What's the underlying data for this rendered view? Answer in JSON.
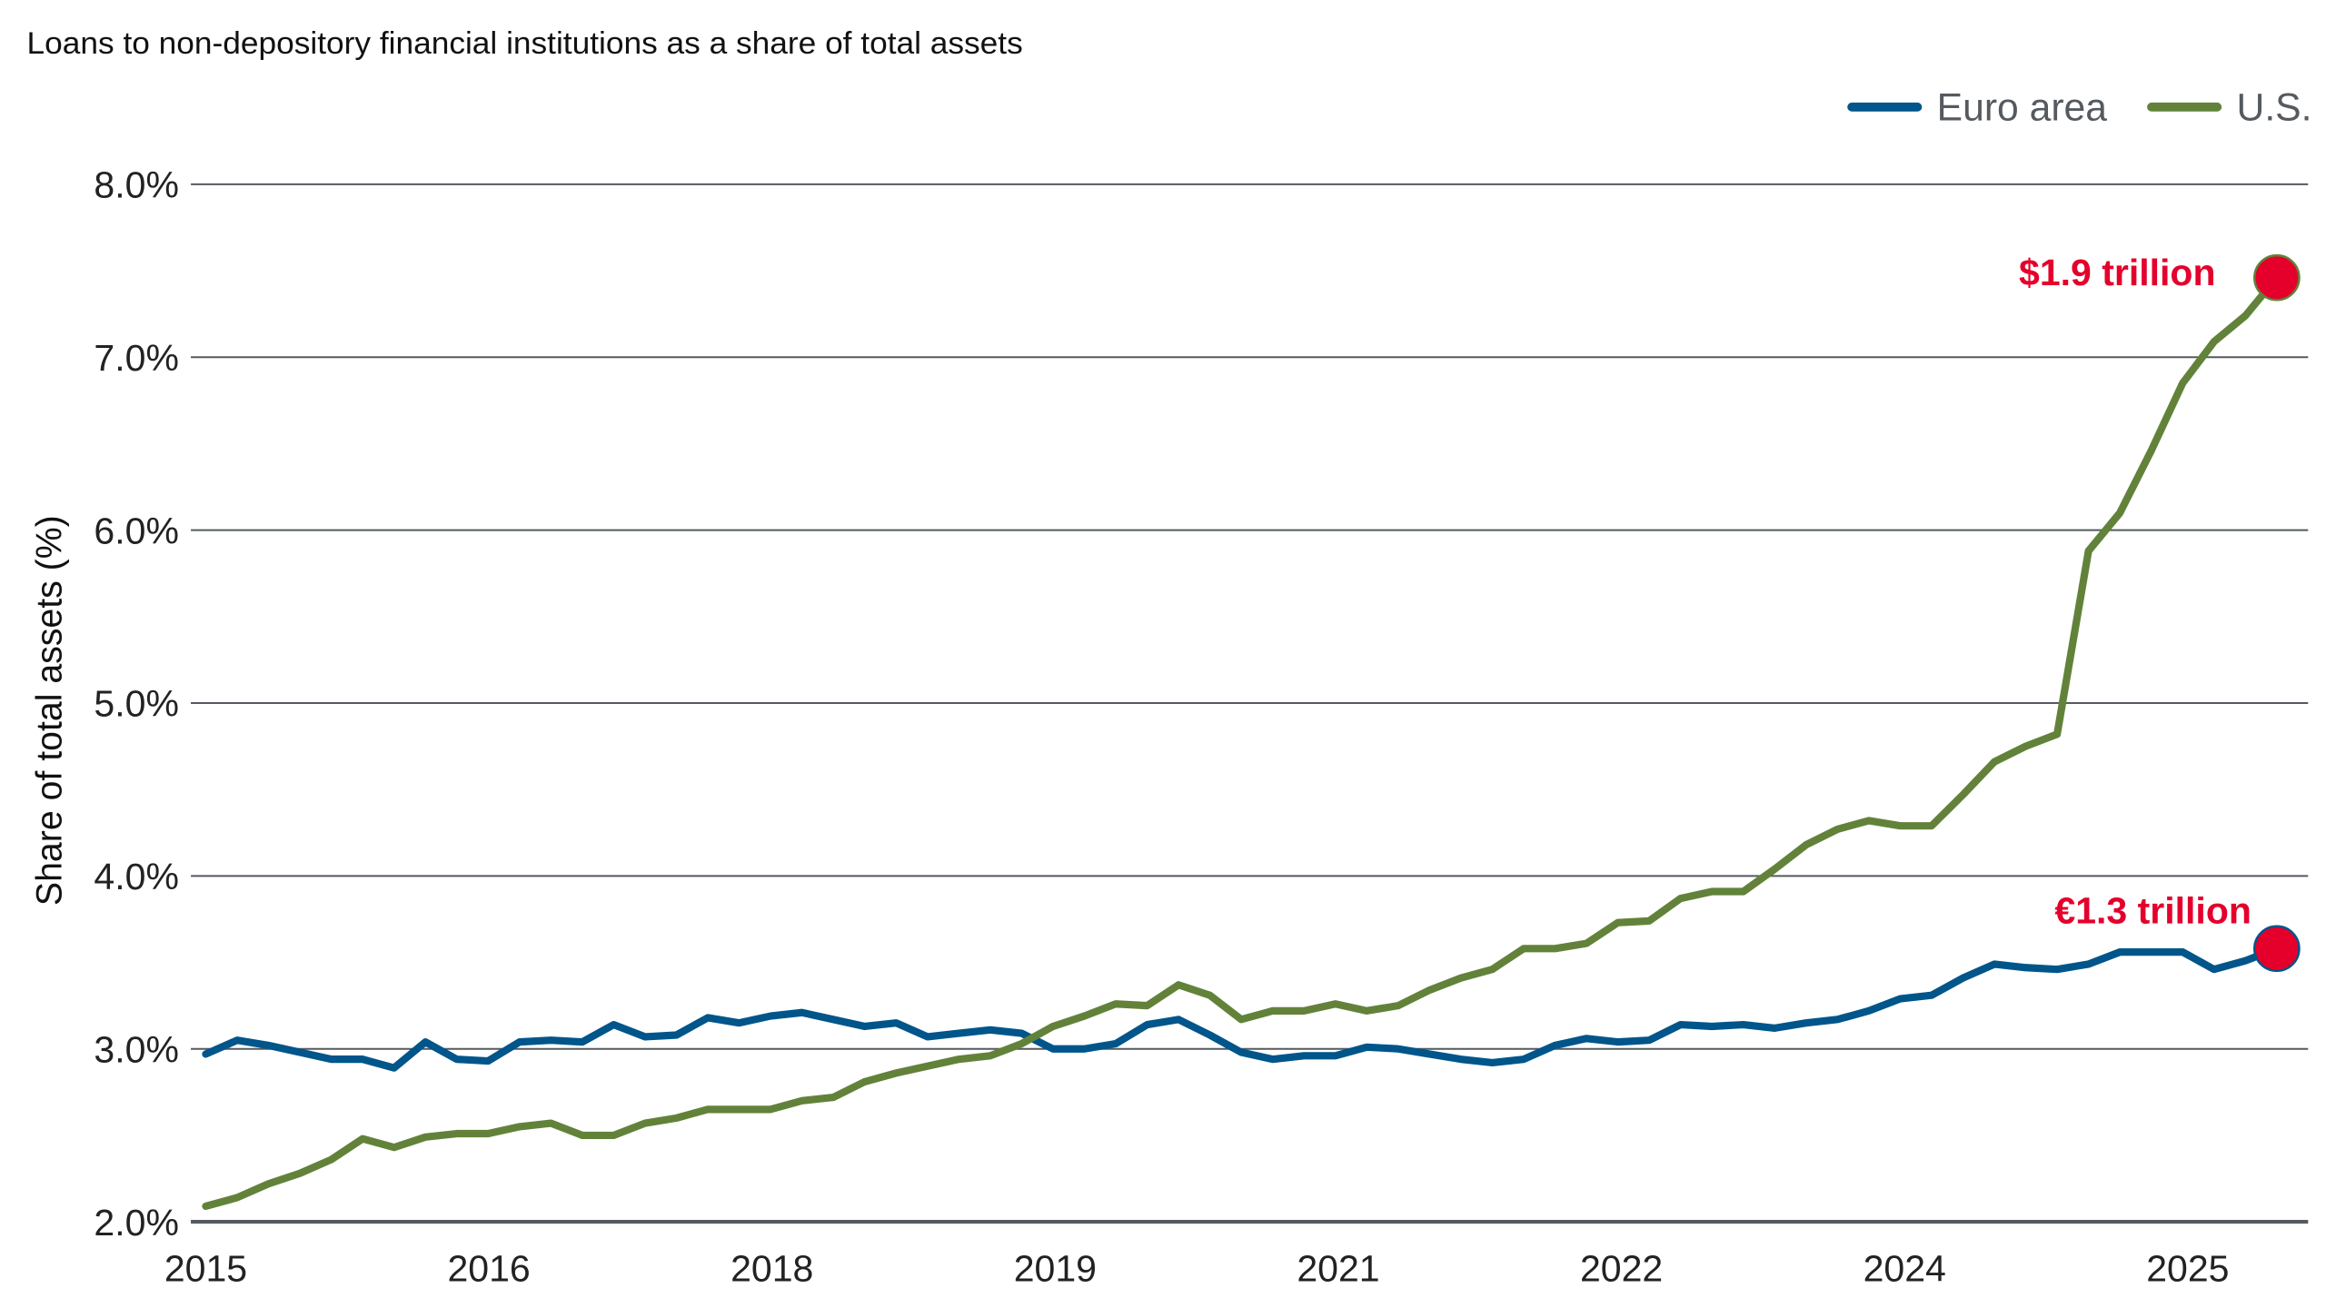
{
  "chart_data": {
    "type": "line",
    "title": "Loans to non-depository financial institutions as a share of total assets",
    "ylabel": "Share of total assets (%)",
    "xlabel": "",
    "ylim": [
      2.0,
      8.0
    ],
    "y_ticks": [
      "2.0%",
      "3.0%",
      "4.0%",
      "5.0%",
      "6.0%",
      "7.0%",
      "8.0%"
    ],
    "x_tick_labels": [
      "2015",
      "2016",
      "2018",
      "2019",
      "2021",
      "2022",
      "2024",
      "2025"
    ],
    "grid": "horizontal",
    "legend_position": "top-right",
    "series": [
      {
        "name": "Euro area",
        "color": "#00558a",
        "end_label": "€1.3 trillion",
        "values": [
          2.97,
          3.05,
          3.02,
          2.98,
          2.94,
          2.94,
          2.89,
          3.04,
          2.94,
          2.93,
          3.04,
          3.05,
          3.04,
          3.14,
          3.07,
          3.08,
          3.18,
          3.15,
          3.19,
          3.21,
          3.17,
          3.13,
          3.15,
          3.07,
          3.09,
          3.11,
          3.09,
          3.0,
          3.0,
          3.03,
          3.14,
          3.17,
          3.08,
          2.98,
          2.94,
          2.96,
          2.96,
          3.01,
          3.0,
          2.97,
          2.94,
          2.92,
          2.94,
          3.02,
          3.06,
          3.04,
          3.05,
          3.14,
          3.13,
          3.14,
          3.12,
          3.15,
          3.17,
          3.22,
          3.29,
          3.31,
          3.41,
          3.49,
          3.47,
          3.46,
          3.49,
          3.56,
          3.56,
          3.56,
          3.46,
          3.51,
          3.58
        ]
      },
      {
        "name": "U.S.",
        "color": "#62823a",
        "end_label": "$1.9 trillion",
        "values": [
          2.09,
          2.14,
          2.22,
          2.28,
          2.36,
          2.48,
          2.43,
          2.49,
          2.51,
          2.51,
          2.55,
          2.57,
          2.5,
          2.5,
          2.57,
          2.6,
          2.65,
          2.65,
          2.65,
          2.7,
          2.72,
          2.81,
          2.86,
          2.9,
          2.94,
          2.96,
          3.03,
          3.13,
          3.19,
          3.26,
          3.25,
          3.37,
          3.31,
          3.17,
          3.22,
          3.22,
          3.26,
          3.22,
          3.25,
          3.34,
          3.41,
          3.46,
          3.58,
          3.58,
          3.61,
          3.73,
          3.74,
          3.87,
          3.91,
          3.91,
          4.04,
          4.18,
          4.27,
          4.32,
          4.29,
          4.29,
          4.47,
          4.66,
          4.75,
          4.82,
          5.88,
          6.1,
          6.46,
          6.85,
          7.09,
          7.24,
          7.46
        ]
      }
    ],
    "highlight_color": "#e4002b"
  }
}
